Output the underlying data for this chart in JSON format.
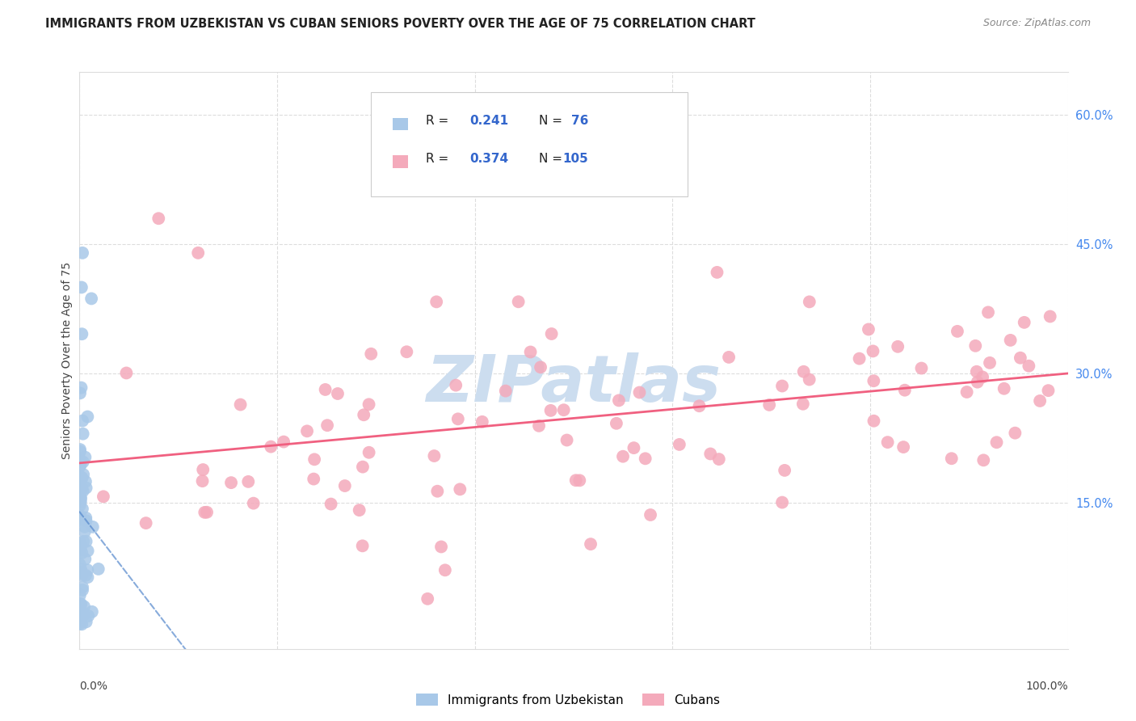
{
  "title": "IMMIGRANTS FROM UZBEKISTAN VS CUBAN SENIORS POVERTY OVER THE AGE OF 75 CORRELATION CHART",
  "source": "Source: ZipAtlas.com",
  "ylabel": "Seniors Poverty Over the Age of 75",
  "xlim": [
    0,
    1.0
  ],
  "ylim": [
    -0.02,
    0.65
  ],
  "y_ticks_right": [
    0.15,
    0.3,
    0.45,
    0.6
  ],
  "y_tick_labels_right": [
    "15.0%",
    "30.0%",
    "45.0%",
    "60.0%"
  ],
  "uzbekistan_color": "#a8c8e8",
  "cuban_color": "#f4aabb",
  "uzbekistan_line_color": "#5588cc",
  "cuban_line_color": "#f06080",
  "watermark": "ZIPatlas",
  "watermark_color": "#ccddef",
  "background_color": "#ffffff",
  "grid_color": "#dddddd",
  "title_color": "#222222",
  "source_color": "#888888",
  "label_color": "#444444",
  "tick_color": "#4488ee",
  "legend_color_blue": "#3366cc",
  "uzbek_r": "0.241",
  "uzbek_n": "76",
  "cuban_r": "0.374",
  "cuban_n": "105"
}
